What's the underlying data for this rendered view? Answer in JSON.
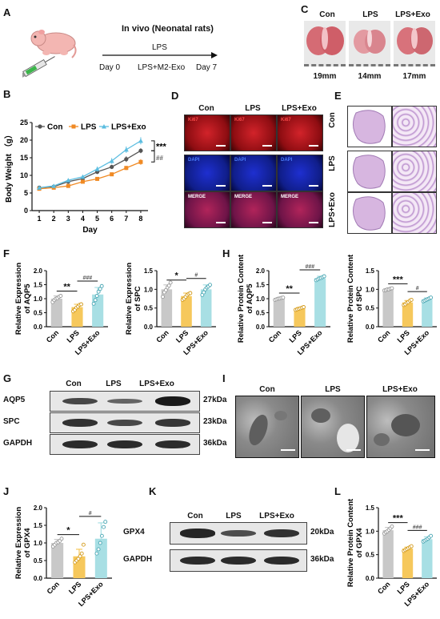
{
  "panels": {
    "A": "A",
    "B": "B",
    "C": "C",
    "D": "D",
    "E": "E",
    "F": "F",
    "G": "G",
    "H": "H",
    "I": "I",
    "J": "J",
    "K": "K",
    "L": "L"
  },
  "panelA": {
    "title": "In vivo (Neonatal rats)",
    "treat1": "LPS",
    "treat2": "LPS+M2-Exo",
    "day0": "Day 0",
    "day7": "Day 7"
  },
  "panelC": {
    "cols": [
      "Con",
      "LPS",
      "LPS+Exo"
    ],
    "sizes": [
      "19mm",
      "14mm",
      "17mm"
    ]
  },
  "panelD": {
    "cols": [
      "Con",
      "LPS",
      "LPS+Exo"
    ],
    "rows": [
      "Ki67",
      "DAPI",
      "MERGE"
    ]
  },
  "panelE": {
    "rows": [
      "Con",
      "LPS",
      "LPS+Exo"
    ]
  },
  "panelG": {
    "cols": [
      "Con",
      "LPS",
      "LPS+Exo"
    ],
    "rows": [
      "AQP5",
      "SPC",
      "GAPDH"
    ],
    "kda": [
      "27kDa",
      "23kDa",
      "36kDa"
    ]
  },
  "panelI": {
    "cols": [
      "Con",
      "LPS",
      "LPS+Exo"
    ]
  },
  "panelK": {
    "cols": [
      "Con",
      "LPS",
      "LPS+Exo"
    ],
    "rows": [
      "GPX4",
      "GAPDH"
    ],
    "kda": [
      "20kDa",
      "36kDa"
    ]
  },
  "colors": {
    "con": "#c8c8c8",
    "lps": "#f6c85c",
    "exo": "#a8dfe4",
    "conLine": "#555555",
    "lpsLine": "#f08a24",
    "exoLine": "#5bbde0"
  },
  "chart_data": [
    {
      "id": "B",
      "type": "line",
      "xlabel": "Day",
      "ylabel": "Body Weight （g）",
      "x": [
        1,
        2,
        3,
        4,
        5,
        6,
        7,
        8
      ],
      "xlim": [
        0.5,
        8.5
      ],
      "ylim": [
        0,
        25
      ],
      "yticks": [
        0,
        5,
        10,
        15,
        20,
        25
      ],
      "series": [
        {
          "name": "Con",
          "values": [
            6.5,
            6.8,
            8.2,
            9.1,
            11.0,
            12.4,
            14.6,
            17.0
          ]
        },
        {
          "name": "LPS",
          "values": [
            6.2,
            6.5,
            7.0,
            8.2,
            9.0,
            10.3,
            12.1,
            13.8
          ]
        },
        {
          "name": "LPS+Exo",
          "values": [
            6.5,
            7.0,
            8.6,
            9.6,
            11.8,
            14.1,
            17.3,
            19.8
          ]
        }
      ],
      "legend": "top",
      "annotations": [
        "***",
        "##"
      ]
    },
    {
      "id": "F1",
      "type": "bar",
      "ylabel": "Relative Expression of AQP5",
      "categories": [
        "Con",
        "LPS",
        "LPS+Exo"
      ],
      "values": [
        1.0,
        0.7,
        1.15
      ],
      "errors": [
        0.1,
        0.1,
        0.25
      ],
      "ylim": [
        0,
        2.0
      ],
      "yticks": [
        0.0,
        0.5,
        1.0,
        1.5,
        2.0
      ],
      "points": [
        [
          0.88,
          0.95,
          1.0,
          1.02,
          1.07,
          1.1
        ],
        [
          0.55,
          0.6,
          0.68,
          0.72,
          0.78,
          0.8
        ],
        [
          0.82,
          0.95,
          1.1,
          1.25,
          1.35,
          1.45
        ]
      ],
      "sig": [
        {
          "from": 0,
          "to": 1,
          "label": "**"
        },
        {
          "from": 1,
          "to": 2,
          "label": "###"
        }
      ]
    },
    {
      "id": "F2",
      "type": "bar",
      "ylabel": "Relative Expression of SPC",
      "categories": [
        "Con",
        "LPS",
        "LPS+Exo"
      ],
      "values": [
        1.0,
        0.82,
        1.0
      ],
      "errors": [
        0.12,
        0.08,
        0.12
      ],
      "ylim": [
        0,
        1.5
      ],
      "yticks": [
        0.0,
        0.5,
        1.0,
        1.5
      ],
      "points": [
        [
          0.8,
          0.92,
          0.98,
          1.05,
          1.1,
          1.18
        ],
        [
          0.72,
          0.75,
          0.8,
          0.85,
          0.88,
          0.9
        ],
        [
          0.85,
          0.92,
          1.0,
          1.05,
          1.08,
          1.12
        ]
      ],
      "sig": [
        {
          "from": 0,
          "to": 1,
          "label": "*"
        },
        {
          "from": 1,
          "to": 2,
          "label": "#"
        }
      ]
    },
    {
      "id": "H1",
      "type": "bar",
      "ylabel": "Relative Protein Content of AQP5",
      "categories": [
        "Con",
        "LPS",
        "LPS+Exo"
      ],
      "values": [
        1.0,
        0.65,
        1.73
      ],
      "errors": [
        0.03,
        0.04,
        0.07
      ],
      "ylim": [
        0,
        2.0
      ],
      "yticks": [
        0.0,
        0.5,
        1.0,
        1.5,
        2.0
      ],
      "points": [
        [
          0.96,
          0.98,
          1.0,
          1.01,
          1.03,
          1.04
        ],
        [
          0.6,
          0.62,
          0.64,
          0.66,
          0.68,
          0.7
        ],
        [
          1.66,
          1.69,
          1.72,
          1.74,
          1.77,
          1.8
        ]
      ],
      "sig": [
        {
          "from": 0,
          "to": 1,
          "label": "**"
        },
        {
          "from": 1,
          "to": 2,
          "label": "###"
        }
      ]
    },
    {
      "id": "H2",
      "type": "bar",
      "ylabel": "Relative Protein Content of SPC",
      "categories": [
        "Con",
        "LPS",
        "LPS+Exo"
      ],
      "values": [
        1.0,
        0.65,
        0.73
      ],
      "errors": [
        0.02,
        0.05,
        0.04
      ],
      "ylim": [
        0,
        1.5
      ],
      "yticks": [
        0.0,
        0.5,
        1.0,
        1.5
      ],
      "points": [
        [
          0.97,
          0.98,
          1.0,
          1.0,
          1.02,
          1.03
        ],
        [
          0.58,
          0.6,
          0.64,
          0.66,
          0.7,
          0.72
        ],
        [
          0.68,
          0.7,
          0.72,
          0.74,
          0.76,
          0.78
        ]
      ],
      "sig": [
        {
          "from": 0,
          "to": 1,
          "label": "***"
        },
        {
          "from": 1,
          "to": 2,
          "label": "#"
        }
      ]
    },
    {
      "id": "J",
      "type": "bar",
      "ylabel": "Relative Expression of GPX4",
      "categories": [
        "Con",
        "LPS",
        "LPS+Exo"
      ],
      "values": [
        1.0,
        0.62,
        1.12
      ],
      "errors": [
        0.1,
        0.2,
        0.45
      ],
      "ylim": [
        0,
        2.0
      ],
      "yticks": [
        0.0,
        0.5,
        1.0,
        1.5,
        2.0
      ],
      "points": [
        [
          0.9,
          0.95,
          1.0,
          1.02,
          1.06,
          1.12
        ],
        [
          0.45,
          0.5,
          0.55,
          0.62,
          0.7,
          0.95
        ],
        [
          0.7,
          0.82,
          1.0,
          1.2,
          1.45,
          1.6
        ]
      ],
      "sig": [
        {
          "from": 0,
          "to": 1,
          "label": "*"
        },
        {
          "from": 1,
          "to": 2,
          "label": "#"
        }
      ]
    },
    {
      "id": "L",
      "type": "bar",
      "ylabel": "Relative Protein Content of GPX4",
      "categories": [
        "Con",
        "LPS",
        "LPS+Exo"
      ],
      "values": [
        1.02,
        0.63,
        0.83
      ],
      "errors": [
        0.06,
        0.03,
        0.05
      ],
      "ylim": [
        0,
        1.5
      ],
      "yticks": [
        0.0,
        0.5,
        1.0,
        1.5
      ],
      "points": [
        [
          0.95,
          0.98,
          1.0,
          1.03,
          1.06,
          1.1
        ],
        [
          0.58,
          0.6,
          0.62,
          0.64,
          0.66,
          0.68
        ],
        [
          0.78,
          0.8,
          0.82,
          0.84,
          0.87,
          0.9
        ]
      ],
      "sig": [
        {
          "from": 0,
          "to": 1,
          "label": "***"
        },
        {
          "from": 1,
          "to": 2,
          "label": "###"
        }
      ]
    }
  ]
}
